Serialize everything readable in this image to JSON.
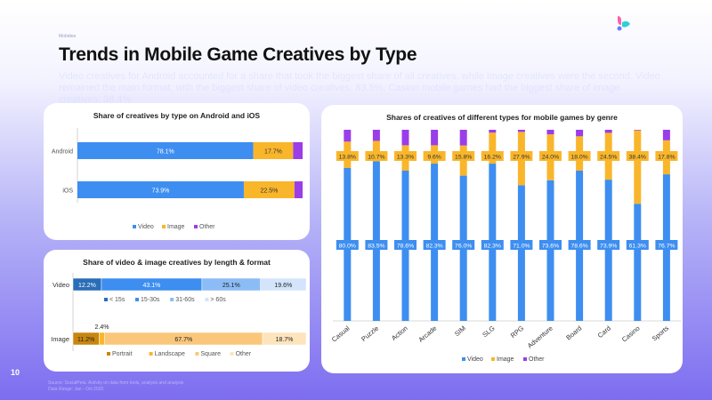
{
  "page": {
    "tiny_tag": "Mobidea",
    "title": "Trends in Mobile Game Creatives by Type",
    "subtitle": "Video creatives for Android accounted for a share that took the biggest share of all creatives, while image creatives were the second. Video remained the main format, with the biggest share of video creatives: 83.5%. Casino mobile games had the biggest share of image creatives: 38.4%",
    "page_number": "10",
    "source_line1": "Source: SocialPeta. Activity on data from tools, analysis and analysis",
    "source_line2": "Data Range: Jan - Oct 2020"
  },
  "colors": {
    "video": "#3d8ef0",
    "image": "#f9b62b",
    "other": "#9b3de8",
    "len_lt15": "#2a6db8",
    "len_15_30": "#3d8ef0",
    "len_31_60": "#8cbcf5",
    "len_gt60": "#d3e4fb",
    "portrait": "#c8860e",
    "landscape": "#f9b62b",
    "square": "#fac77a",
    "fmt_other": "#fde4bd"
  },
  "chart_data": [
    {
      "type": "bar",
      "orientation": "horizontal",
      "stacked": true,
      "title": "Share of creatives by type on Android and iOS",
      "categories": [
        "Android",
        "iOS"
      ],
      "series": [
        {
          "name": "Video",
          "values": [
            78.1,
            73.9
          ],
          "labels": [
            "78.1%",
            "73.9%"
          ]
        },
        {
          "name": "Image",
          "values": [
            17.7,
            22.5
          ],
          "labels": [
            "17.7%",
            "22.5%"
          ]
        },
        {
          "name": "Other",
          "values": [
            4.2,
            3.6
          ]
        }
      ],
      "legend": "bottom"
    },
    {
      "type": "bar",
      "orientation": "horizontal",
      "stacked": true,
      "title": "Share of video & image creatives by length & format",
      "categories": [
        "Video",
        "Image"
      ],
      "groups": [
        {
          "category": "Video",
          "segments": [
            {
              "name": "< 15s",
              "value": 12.2,
              "label": "12.2%"
            },
            {
              "name": "15-30s",
              "value": 43.1,
              "label": "43.1%"
            },
            {
              "name": "31-60s",
              "value": 25.1,
              "label": "25.1%"
            },
            {
              "name": "> 60s",
              "value": 19.6,
              "label": "19.6%"
            }
          ]
        },
        {
          "category": "Image",
          "segments": [
            {
              "name": "Portrait",
              "value": 11.2,
              "label": "11.2%"
            },
            {
              "name": "Landscape",
              "value": 2.4,
              "label": "2.4%"
            },
            {
              "name": "Square",
              "value": 67.7,
              "label": "67.7%"
            },
            {
              "name": "Other",
              "value": 18.7,
              "label": "18.7%"
            }
          ]
        }
      ],
      "legends": "below each bar"
    },
    {
      "type": "bar",
      "orientation": "vertical",
      "stacked": true,
      "title": "Shares of creatives of different types for mobile games by genre",
      "categories": [
        "Casual",
        "Puzzle",
        "Action",
        "Arcade",
        "SIM",
        "SLG",
        "RPG",
        "Adventure",
        "Board",
        "Card",
        "Casino",
        "Sports"
      ],
      "series": [
        {
          "name": "Video",
          "values": [
            80.0,
            83.5,
            78.6,
            82.3,
            76.0,
            82.3,
            71.0,
            73.6,
            78.6,
            73.9,
            61.3,
            76.7
          ],
          "labels": [
            "80.0%",
            "83.5%",
            "78.6%",
            "82.3%",
            "76.0%",
            "82.3%",
            "71.0%",
            "73.6%",
            "78.6%",
            "73.9%",
            "61.3%",
            "76.7%"
          ]
        },
        {
          "name": "Image",
          "values": [
            13.8,
            10.7,
            13.3,
            9.6,
            15.8,
            16.2,
            27.9,
            24.0,
            18.0,
            24.5,
            38.4,
            17.8
          ],
          "labels": [
            "13.8%",
            "10.7%",
            "13.3%",
            "9.6%",
            "15.8%",
            "16.2%",
            "27.9%",
            "24.0%",
            "18.0%",
            "24.5%",
            "38.4%",
            "17.8%"
          ]
        },
        {
          "name": "Other",
          "values": [
            6.2,
            5.8,
            8.1,
            8.1,
            8.2,
            1.5,
            1.1,
            2.4,
            3.4,
            1.6,
            0.3,
            5.5
          ]
        }
      ],
      "ylim": [
        0,
        100
      ],
      "legend": "bottom"
    }
  ]
}
